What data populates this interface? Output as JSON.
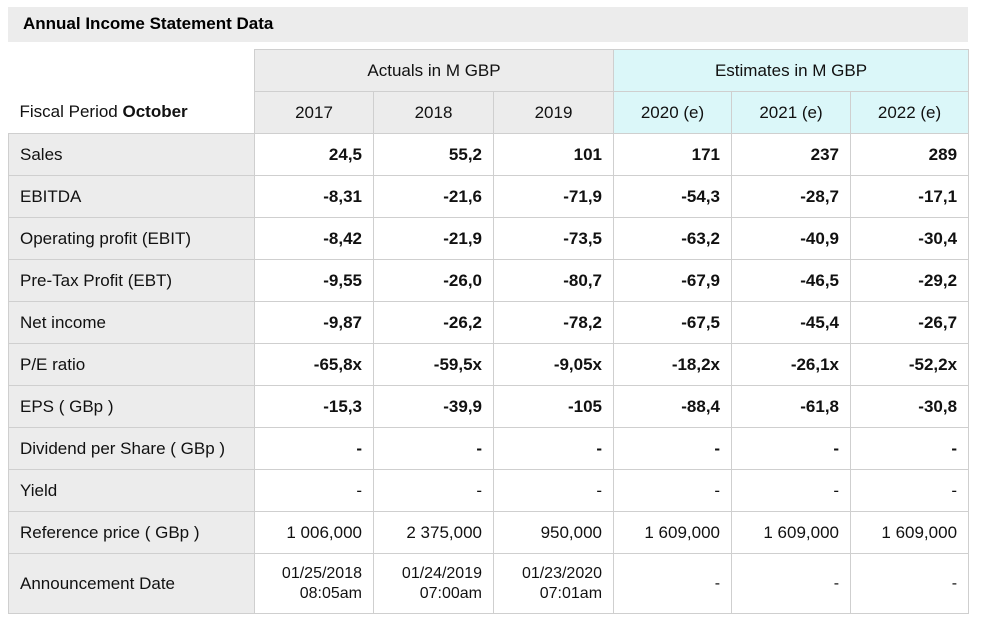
{
  "title": "Annual Income Statement Data",
  "header": {
    "period_label_prefix": "Fiscal Period",
    "period_label_month": "October",
    "actuals_label": "Actuals in M GBP",
    "estimates_label": "Estimates in M GBP",
    "years": [
      "2017",
      "2018",
      "2019",
      "2020 (e)",
      "2021 (e)",
      "2022 (e)"
    ]
  },
  "rows": [
    {
      "label": "Sales",
      "values": [
        "24,5",
        "55,2",
        "101",
        "171",
        "237",
        "289"
      ]
    },
    {
      "label": "EBITDA",
      "values": [
        "-8,31",
        "-21,6",
        "-71,9",
        "-54,3",
        "-28,7",
        "-17,1"
      ]
    },
    {
      "label": "Operating profit (EBIT)",
      "values": [
        "-8,42",
        "-21,9",
        "-73,5",
        "-63,2",
        "-40,9",
        "-30,4"
      ]
    },
    {
      "label": "Pre-Tax Profit (EBT)",
      "values": [
        "-9,55",
        "-26,0",
        "-80,7",
        "-67,9",
        "-46,5",
        "-29,2"
      ]
    },
    {
      "label": "Net income",
      "values": [
        "-9,87",
        "-26,2",
        "-78,2",
        "-67,5",
        "-45,4",
        "-26,7"
      ]
    },
    {
      "label": "P/E ratio",
      "values": [
        "-65,8x",
        "-59,5x",
        "-9,05x",
        "-18,2x",
        "-26,1x",
        "-52,2x"
      ]
    },
    {
      "label": "EPS ( GBp )",
      "values": [
        "-15,3",
        "-39,9",
        "-105",
        "-88,4",
        "-61,8",
        "-30,8"
      ]
    },
    {
      "label": "Dividend per Share ( GBp )",
      "values": [
        "-",
        "-",
        "-",
        "-",
        "-",
        "-"
      ]
    },
    {
      "label": "Yield",
      "values": [
        "-",
        "-",
        "-",
        "-",
        "-",
        "-"
      ]
    },
    {
      "label": "Reference price ( GBp )",
      "values": [
        "1 006,000",
        "2 375,000",
        "950,000",
        "1 609,000",
        "1 609,000",
        "1 609,000"
      ]
    }
  ],
  "announcement": {
    "label": "Announcement Date",
    "dates": [
      {
        "date": "01/25/2018",
        "time": "08:05am"
      },
      {
        "date": "01/24/2019",
        "time": "07:00am"
      },
      {
        "date": "01/23/2020",
        "time": "07:01am"
      },
      {
        "date": "-",
        "time": ""
      },
      {
        "date": "-",
        "time": ""
      },
      {
        "date": "-",
        "time": ""
      }
    ]
  },
  "colors": {
    "actuals_bg": "#ececec",
    "estimates_bg": "#dbf7f9",
    "border": "#cfcfcf"
  }
}
